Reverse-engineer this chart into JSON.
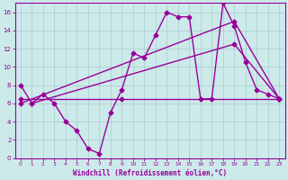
{
  "xlabel": "Windchill (Refroidissement éolien,°C)",
  "bg_color": "#cceaea",
  "line_color": "#990099",
  "xlim": [
    -0.5,
    23.5
  ],
  "ylim": [
    0,
    17
  ],
  "xticks": [
    0,
    1,
    2,
    3,
    4,
    5,
    6,
    7,
    8,
    9,
    10,
    11,
    12,
    13,
    14,
    15,
    16,
    17,
    18,
    19,
    20,
    21,
    22,
    23
  ],
  "yticks": [
    0,
    2,
    4,
    6,
    8,
    10,
    12,
    14,
    16
  ],
  "series1_x": [
    0,
    1,
    2,
    3,
    4,
    5,
    6,
    7,
    8,
    9,
    10,
    11,
    12,
    13,
    14,
    15,
    16,
    17,
    18,
    19,
    20,
    21,
    22,
    23
  ],
  "series1_y": [
    8.0,
    6.0,
    7.0,
    6.0,
    4.0,
    3.0,
    1.0,
    0.5,
    5.0,
    7.5,
    11.5,
    11.0,
    13.5,
    16.0,
    15.5,
    15.5,
    6.5,
    6.5,
    17.0,
    14.5,
    10.5,
    7.5,
    7.0,
    6.5
  ],
  "series2_x": [
    0,
    9,
    23
  ],
  "series2_y": [
    6.5,
    6.5,
    6.5
  ],
  "series3_x": [
    0,
    19,
    23
  ],
  "series3_y": [
    6.0,
    15.0,
    6.5
  ],
  "series4_x": [
    1,
    19,
    23
  ],
  "series4_y": [
    6.0,
    12.5,
    6.5
  ],
  "grid_color": "#aacccc",
  "marker": "D",
  "markersize": 2.5,
  "linewidth": 1.0
}
